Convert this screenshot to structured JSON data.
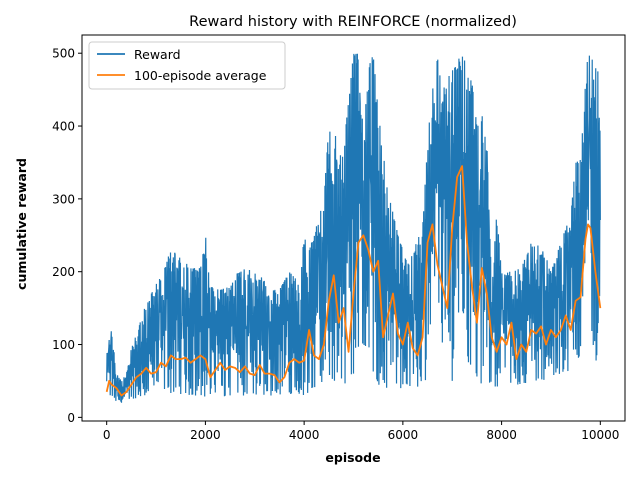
{
  "chart_data": {
    "type": "line",
    "title": "Reward history with REINFORCE (normalized)",
    "xlabel": "episode",
    "ylabel": "cumulative reward",
    "xlim": [
      -500,
      10500
    ],
    "ylim": [
      -5,
      525
    ],
    "xticks": [
      0,
      2000,
      4000,
      6000,
      8000,
      10000
    ],
    "yticks": [
      0,
      100,
      200,
      300,
      400,
      500
    ],
    "grid": false,
    "legend_position": "top-left",
    "colors": {
      "Reward": "#1f77b4",
      "100-episode average": "#ff7f0e"
    },
    "series": [
      {
        "name": "Reward",
        "style": "noisy-band",
        "x": [
          0,
          100,
          200,
          300,
          400,
          500,
          700,
          900,
          1100,
          1300,
          1500,
          1700,
          1900,
          2000,
          2100,
          2300,
          2500,
          2700,
          2900,
          3100,
          3300,
          3500,
          3700,
          3900,
          4000,
          4100,
          4200,
          4400,
          4500,
          4600,
          4800,
          5000,
          5100,
          5200,
          5300,
          5400,
          5500,
          5700,
          5800,
          5900,
          6100,
          6300,
          6400,
          6500,
          6600,
          6700,
          6800,
          6900,
          7000,
          7100,
          7200,
          7300,
          7400,
          7500,
          7600,
          7700,
          7800,
          7900,
          8000,
          8200,
          8400,
          8600,
          8800,
          9000,
          9200,
          9400,
          9500,
          9600,
          9700,
          9750,
          9800,
          9900,
          10000
        ],
        "low": [
          30,
          25,
          20,
          20,
          22,
          25,
          28,
          30,
          33,
          33,
          32,
          30,
          30,
          28,
          30,
          28,
          30,
          30,
          30,
          30,
          30,
          30,
          32,
          32,
          30,
          35,
          40,
          45,
          55,
          50,
          40,
          60,
          80,
          100,
          90,
          60,
          45,
          40,
          40,
          40,
          40,
          40,
          45,
          50,
          120,
          180,
          100,
          60,
          50,
          80,
          150,
          80,
          60,
          50,
          40,
          50,
          40,
          40,
          40,
          45,
          45,
          50,
          50,
          55,
          60,
          65,
          70,
          85,
          90,
          120,
          100,
          80,
          60
        ],
        "high": [
          100,
          120,
          60,
          50,
          60,
          95,
          140,
          170,
          195,
          230,
          220,
          205,
          205,
          265,
          180,
          175,
          180,
          205,
          205,
          200,
          175,
          175,
          200,
          185,
          250,
          230,
          250,
          300,
          400,
          390,
          370,
          500,
          500,
          390,
          480,
          500,
          420,
          310,
          285,
          250,
          210,
          245,
          260,
          380,
          450,
          500,
          440,
          480,
          480,
          500,
          500,
          480,
          460,
          400,
          420,
          380,
          180,
          280,
          200,
          200,
          205,
          240,
          240,
          200,
          240,
          280,
          350,
          355,
          460,
          500,
          500,
          480,
          470
        ]
      },
      {
        "name": "100-episode average",
        "x": [
          0,
          50,
          100,
          200,
          300,
          400,
          500,
          600,
          700,
          800,
          900,
          1000,
          1100,
          1200,
          1300,
          1400,
          1500,
          1600,
          1700,
          1800,
          1900,
          2000,
          2100,
          2200,
          2300,
          2400,
          2500,
          2600,
          2700,
          2800,
          2900,
          3000,
          3100,
          3200,
          3300,
          3400,
          3500,
          3600,
          3700,
          3800,
          3900,
          4000,
          4100,
          4200,
          4300,
          4400,
          4500,
          4600,
          4700,
          4800,
          4900,
          5000,
          5100,
          5200,
          5300,
          5400,
          5500,
          5600,
          5700,
          5800,
          5900,
          6000,
          6100,
          6200,
          6300,
          6400,
          6500,
          6600,
          6700,
          6800,
          6900,
          7000,
          7100,
          7200,
          7300,
          7400,
          7500,
          7600,
          7700,
          7800,
          7900,
          8000,
          8100,
          8200,
          8300,
          8400,
          8500,
          8600,
          8700,
          8800,
          8900,
          9000,
          9100,
          9200,
          9300,
          9400,
          9500,
          9600,
          9700,
          9750,
          9800,
          9900,
          10000
        ],
        "y": [
          35,
          50,
          45,
          40,
          30,
          35,
          45,
          55,
          60,
          68,
          60,
          62,
          75,
          70,
          85,
          80,
          80,
          82,
          75,
          80,
          85,
          80,
          55,
          65,
          75,
          65,
          70,
          68,
          62,
          70,
          60,
          58,
          72,
          60,
          60,
          58,
          48,
          55,
          75,
          80,
          75,
          78,
          120,
          85,
          80,
          100,
          160,
          195,
          130,
          150,
          90,
          170,
          240,
          250,
          230,
          200,
          215,
          110,
          140,
          170,
          115,
          100,
          130,
          95,
          85,
          110,
          240,
          265,
          210,
          180,
          150,
          260,
          330,
          345,
          240,
          180,
          130,
          205,
          170,
          110,
          90,
          110,
          100,
          130,
          80,
          100,
          90,
          120,
          115,
          125,
          100,
          120,
          110,
          120,
          140,
          120,
          160,
          165,
          245,
          265,
          260,
          200,
          150
        ]
      }
    ]
  }
}
